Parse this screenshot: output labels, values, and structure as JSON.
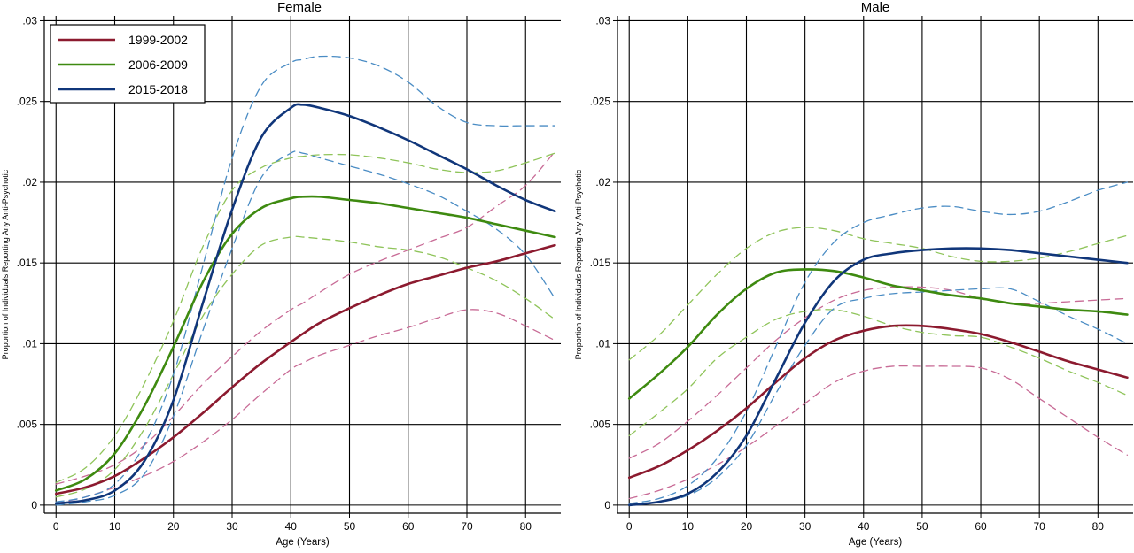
{
  "colors": {
    "1999-2002": "#8c1a2f",
    "2006-2009": "#3e8a10",
    "2015-2018": "#10367a",
    "ci_1999-2002": "#c86b96",
    "ci_2006-2009": "#8fc45a",
    "ci_2015-2018": "#4a8cc4",
    "grid": "#000000",
    "background": "#ffffff"
  },
  "chart_data": [
    {
      "type": "line",
      "title": "Female",
      "xlabel": "Age (Years)",
      "ylabel": "Proportion of Individuals Reporting Any Anti-Psychotic",
      "xlim": [
        -2,
        86
      ],
      "ylim": [
        -0.0005,
        0.0303
      ],
      "xticks": [
        0,
        10,
        20,
        30,
        40,
        50,
        60,
        70,
        80
      ],
      "yticks": [
        0,
        0.005,
        0.01,
        0.015,
        0.02,
        0.025,
        0.03
      ],
      "ytick_labels": [
        "0",
        ".005",
        ".01",
        ".015",
        ".02",
        ".025",
        ".03"
      ],
      "grid": true,
      "legend": {
        "placement": "top-left",
        "entries": [
          "1999-2002",
          "2006-2009",
          "2015-2018"
        ]
      },
      "x": [
        0,
        5,
        10,
        15,
        20,
        25,
        30,
        35,
        40,
        42,
        45,
        50,
        55,
        60,
        65,
        70,
        75,
        80,
        85
      ],
      "series": [
        {
          "name": "1999-2002",
          "style": "solid",
          "values": [
            0.0007,
            0.0011,
            0.0018,
            0.0029,
            0.0042,
            0.0057,
            0.0073,
            0.0088,
            0.0101,
            0.0106,
            0.0113,
            0.0122,
            0.013,
            0.0137,
            0.0142,
            0.0147,
            0.0151,
            0.0156,
            0.0161
          ]
        },
        {
          "name": "1999-2002 lower CI",
          "style": "dashed",
          "values": [
            0.0001,
            0.0005,
            0.0011,
            0.0018,
            0.0027,
            0.0039,
            0.0053,
            0.0069,
            0.0084,
            0.0088,
            0.0093,
            0.0099,
            0.0105,
            0.011,
            0.0116,
            0.0121,
            0.0119,
            0.0111,
            0.0102
          ]
        },
        {
          "name": "1999-2002 upper CI",
          "style": "dashed",
          "values": [
            0.0013,
            0.0018,
            0.0025,
            0.0037,
            0.0055,
            0.0075,
            0.0092,
            0.0108,
            0.0121,
            0.0125,
            0.0132,
            0.0143,
            0.0151,
            0.0158,
            0.0165,
            0.0172,
            0.0185,
            0.0198,
            0.0219
          ]
        },
        {
          "name": "2006-2009",
          "style": "solid",
          "values": [
            0.0009,
            0.0016,
            0.0032,
            0.0061,
            0.0098,
            0.0138,
            0.0168,
            0.0184,
            0.019,
            0.0191,
            0.0191,
            0.0189,
            0.0187,
            0.0184,
            0.0181,
            0.0178,
            0.0174,
            0.017,
            0.0166
          ]
        },
        {
          "name": "2006-2009 lower CI",
          "style": "dashed",
          "values": [
            0.0005,
            0.001,
            0.0022,
            0.0047,
            0.0081,
            0.0117,
            0.0143,
            0.0161,
            0.0166,
            0.0166,
            0.0165,
            0.0163,
            0.016,
            0.0158,
            0.0154,
            0.0147,
            0.0139,
            0.0128,
            0.0115
          ]
        },
        {
          "name": "2006-2009 upper CI",
          "style": "dashed",
          "values": [
            0.0014,
            0.0023,
            0.0043,
            0.0075,
            0.0114,
            0.016,
            0.0195,
            0.0209,
            0.0215,
            0.0216,
            0.0217,
            0.0217,
            0.0215,
            0.0212,
            0.0208,
            0.0206,
            0.0207,
            0.0212,
            0.0218
          ]
        },
        {
          "name": "2015-2018",
          "style": "solid",
          "values": [
            0.0001,
            0.0003,
            0.0009,
            0.0027,
            0.0065,
            0.0125,
            0.0183,
            0.0228,
            0.0246,
            0.0248,
            0.0246,
            0.0241,
            0.0234,
            0.0226,
            0.0217,
            0.0208,
            0.0198,
            0.0189,
            0.0182
          ]
        },
        {
          "name": "2015-2018 lower CI",
          "style": "dashed",
          "values": [
            0.0,
            0.0002,
            0.0006,
            0.0019,
            0.0055,
            0.0108,
            0.0159,
            0.0203,
            0.0218,
            0.0218,
            0.0215,
            0.021,
            0.0205,
            0.0199,
            0.0192,
            0.0182,
            0.0171,
            0.0155,
            0.0128
          ]
        },
        {
          "name": "2015-2018 upper CI",
          "style": "dashed",
          "values": [
            0.0002,
            0.0005,
            0.0013,
            0.0037,
            0.0081,
            0.0148,
            0.0215,
            0.026,
            0.0274,
            0.0276,
            0.0278,
            0.0277,
            0.0272,
            0.0262,
            0.0247,
            0.0237,
            0.0235,
            0.0235,
            0.0235
          ]
        }
      ]
    },
    {
      "type": "line",
      "title": "Male",
      "xlabel": "Age (Years)",
      "ylabel": "Proportion of Individuals Reporting Any Anti-Psychotic",
      "xlim": [
        -2,
        86
      ],
      "ylim": [
        -0.0005,
        0.0303
      ],
      "xticks": [
        0,
        10,
        20,
        30,
        40,
        50,
        60,
        70,
        80
      ],
      "yticks": [
        0,
        0.005,
        0.01,
        0.015,
        0.02,
        0.025,
        0.03
      ],
      "ytick_labels": [
        "0",
        ".005",
        ".01",
        ".015",
        ".02",
        ".025",
        ".03"
      ],
      "grid": true,
      "legend": null,
      "x": [
        0,
        5,
        10,
        15,
        20,
        25,
        30,
        35,
        40,
        45,
        50,
        55,
        60,
        65,
        70,
        75,
        80,
        85
      ],
      "series": [
        {
          "name": "1999-2002",
          "style": "solid",
          "values": [
            0.0017,
            0.0024,
            0.0034,
            0.0046,
            0.006,
            0.0076,
            0.0091,
            0.0102,
            0.0108,
            0.0111,
            0.0111,
            0.0109,
            0.0106,
            0.0101,
            0.0095,
            0.0089,
            0.0084,
            0.0079
          ]
        },
        {
          "name": "1999-2002 lower CI",
          "style": "dashed",
          "values": [
            0.0004,
            0.0009,
            0.0016,
            0.0025,
            0.0036,
            0.0049,
            0.0063,
            0.0076,
            0.0083,
            0.0086,
            0.0086,
            0.0086,
            0.0085,
            0.0078,
            0.0066,
            0.0054,
            0.0042,
            0.0031
          ]
        },
        {
          "name": "1999-2002 upper CI",
          "style": "dashed",
          "values": [
            0.0029,
            0.0038,
            0.0052,
            0.0068,
            0.0085,
            0.0102,
            0.0116,
            0.0127,
            0.0133,
            0.0135,
            0.0135,
            0.0133,
            0.0128,
            0.0125,
            0.0125,
            0.0126,
            0.0127,
            0.0128
          ]
        },
        {
          "name": "2006-2009",
          "style": "solid",
          "values": [
            0.0066,
            0.0081,
            0.0098,
            0.0118,
            0.0134,
            0.0144,
            0.0146,
            0.0145,
            0.0141,
            0.0136,
            0.0133,
            0.013,
            0.0128,
            0.0125,
            0.0123,
            0.0121,
            0.012,
            0.0118
          ]
        },
        {
          "name": "2006-2009 lower CI",
          "style": "dashed",
          "values": [
            0.0043,
            0.0057,
            0.0072,
            0.0091,
            0.0104,
            0.0115,
            0.012,
            0.0121,
            0.0117,
            0.0111,
            0.0107,
            0.0105,
            0.0104,
            0.0098,
            0.0091,
            0.0083,
            0.0076,
            0.0068
          ]
        },
        {
          "name": "2006-2009 upper CI",
          "style": "dashed",
          "values": [
            0.009,
            0.0105,
            0.0124,
            0.0143,
            0.0159,
            0.0169,
            0.0172,
            0.017,
            0.0165,
            0.0162,
            0.0159,
            0.0154,
            0.0151,
            0.0151,
            0.0153,
            0.0157,
            0.0162,
            0.0167
          ]
        },
        {
          "name": "2015-2018",
          "style": "solid",
          "values": [
            0.0,
            0.0002,
            0.0007,
            0.002,
            0.0043,
            0.0078,
            0.0113,
            0.0139,
            0.0152,
            0.0156,
            0.0158,
            0.0159,
            0.0159,
            0.0158,
            0.0156,
            0.0154,
            0.0152,
            0.015
          ]
        },
        {
          "name": "2015-2018 lower CI",
          "style": "dashed",
          "values": [
            0.0,
            0.0002,
            0.0006,
            0.0017,
            0.0037,
            0.0069,
            0.0099,
            0.0122,
            0.0128,
            0.0131,
            0.0132,
            0.0133,
            0.0134,
            0.0134,
            0.0126,
            0.0117,
            0.0109,
            0.01
          ]
        },
        {
          "name": "2015-2018 upper CI",
          "style": "dashed",
          "values": [
            0.0001,
            0.0004,
            0.0012,
            0.0029,
            0.0058,
            0.0098,
            0.0138,
            0.0163,
            0.0175,
            0.018,
            0.0184,
            0.0185,
            0.0182,
            0.018,
            0.0182,
            0.0188,
            0.0195,
            0.02
          ]
        }
      ]
    }
  ]
}
